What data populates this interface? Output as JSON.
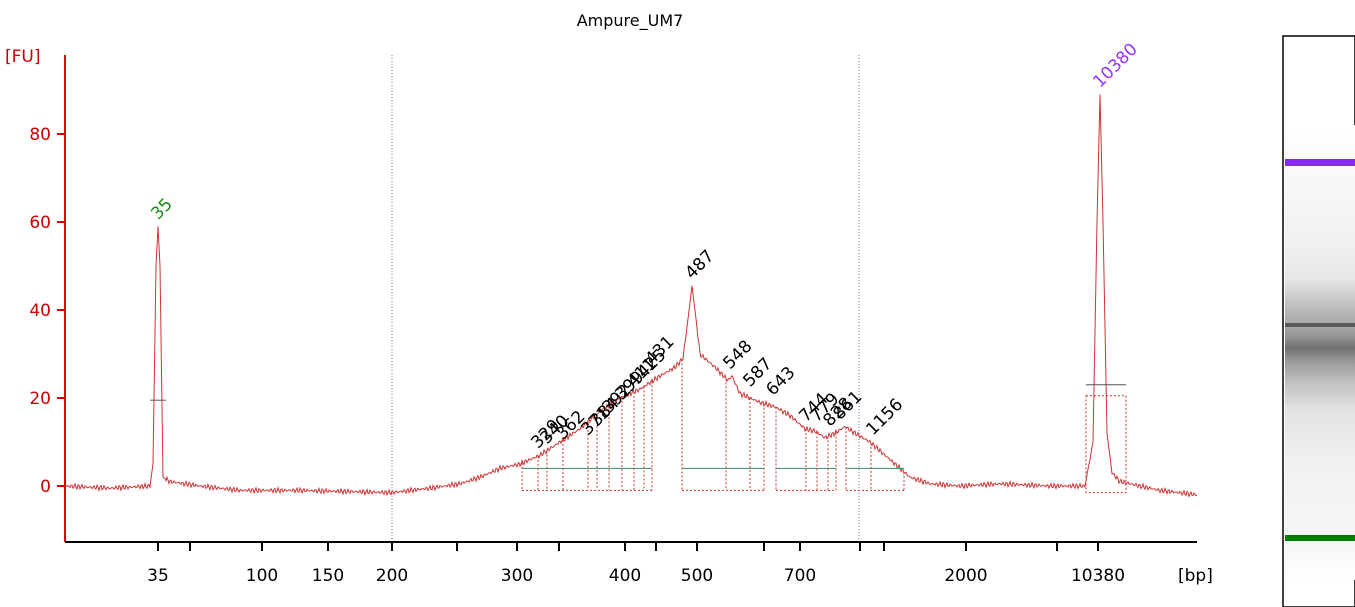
{
  "chart_data": {
    "type": "line",
    "title": "Ampure_UM7",
    "ylabel": "[FU]",
    "xlabel": "[bp]",
    "y_ticks": [
      "0",
      "20",
      "40",
      "60",
      "80"
    ],
    "ylim": [
      -12,
      98
    ],
    "x_tick_labels": [
      "35",
      "100",
      "150",
      "200",
      "300",
      "400",
      "500",
      "700",
      "2000",
      "10380"
    ],
    "grid": false,
    "colors": {
      "trace": "#cc3333",
      "axis": "#dd0000",
      "marker_lower": "#1a8a1a",
      "marker_upper": "#9933ff",
      "peak_label": "#000000",
      "gel_lower_band": "#008000",
      "gel_upper_band": "#8a2be2"
    },
    "marker_peaks": [
      {
        "label": "35",
        "fu": 59,
        "role": "lower marker"
      },
      {
        "label": "10380",
        "fu": 89,
        "role": "upper marker"
      }
    ],
    "sample_peaks": [
      {
        "label": "487",
        "fu": 45.5
      },
      {
        "label": "548",
        "fu": 25
      },
      {
        "label": "587",
        "fu": 21
      },
      {
        "label": "643",
        "fu": 19
      },
      {
        "label": "744",
        "fu": 13
      },
      {
        "label": "779",
        "fu": 13
      },
      {
        "label": "828",
        "fu": 12
      },
      {
        "label": "861",
        "fu": 13.5
      },
      {
        "label": "1156",
        "fu": 10
      },
      {
        "label": "329",
        "fu": 7
      },
      {
        "label": "340",
        "fu": 8
      },
      {
        "label": "362",
        "fu": 9
      },
      {
        "label": "371",
        "fu": 10
      },
      {
        "label": "384",
        "fu": 12
      },
      {
        "label": "392",
        "fu": 15
      },
      {
        "label": "399",
        "fu": 18
      },
      {
        "label": "411",
        "fu": 21
      },
      {
        "label": "425",
        "fu": 23
      },
      {
        "label": "431",
        "fu": 26
      }
    ]
  }
}
